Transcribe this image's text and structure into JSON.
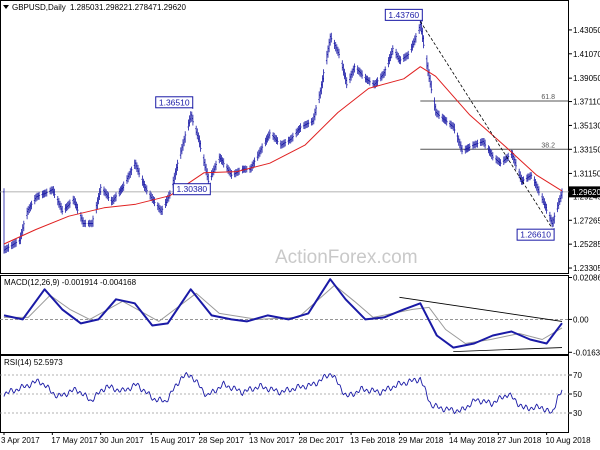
{
  "chart_data": [
    {
      "type": "line",
      "panel": "price",
      "symbol": "GBPUSD",
      "timeframe": "Daily",
      "header_label": "GBPUSD,Daily",
      "ohlc": {
        "open": "1.28503",
        "high": "1.29822",
        "low": "1.27847",
        "close": "1.29620"
      },
      "watermark": "ActionForex.com",
      "x_labels": [
        "3 Apr 2017",
        "17 May 2017",
        "30 Jun 2017",
        "15 Aug 2017",
        "28 Sep 2017",
        "13 Nov 2017",
        "28 Dec 2017",
        "13 Feb 2018",
        "29 Mar 2018",
        "14 May 2018",
        "27 Jun 2018",
        "10 Aug 2018"
      ],
      "x_range": [
        "2017-04-03",
        "2018-08-24"
      ],
      "y_ticks": [
        "1.43050",
        "1.41070",
        "1.39050",
        "1.37110",
        "1.35130",
        "1.33150",
        "1.31150",
        "1.29245",
        "1.27265",
        "1.25285",
        "1.23305"
      ],
      "ylim": [
        1.2281,
        1.4437
      ],
      "current_price": "1.29620",
      "annotations": [
        {
          "text": "1.43760",
          "date": "2018-04-17",
          "value": 1.4376,
          "role": "high"
        },
        {
          "text": "1.36510",
          "date": "2017-09-20",
          "value": 1.3651,
          "role": "high"
        },
        {
          "text": "1.30380",
          "date": "2017-10-06",
          "value": 1.3038,
          "role": "low"
        },
        {
          "text": "1.26610",
          "date": "2018-08-15",
          "value": 1.2661,
          "role": "low"
        }
      ],
      "fib_levels": [
        {
          "label": "61.8",
          "value": 1.3716
        },
        {
          "label": "38.2",
          "value": 1.3315
        }
      ],
      "series": [
        {
          "kind": "price",
          "color": "#1a1aa6",
          "points": [
            [
              "2017-04-03",
              1.248
            ],
            [
              "2017-04-17",
              1.256
            ],
            [
              "2017-04-24",
              1.28
            ],
            [
              "2017-05-02",
              1.292
            ],
            [
              "2017-05-10",
              1.295
            ],
            [
              "2017-05-17",
              1.298
            ],
            [
              "2017-05-26",
              1.28
            ],
            [
              "2017-06-05",
              1.29
            ],
            [
              "2017-06-14",
              1.27
            ],
            [
              "2017-06-22",
              1.27
            ],
            [
              "2017-06-30",
              1.3
            ],
            [
              "2017-07-10",
              1.288
            ],
            [
              "2017-07-20",
              1.3
            ],
            [
              "2017-07-31",
              1.32
            ],
            [
              "2017-08-09",
              1.3
            ],
            [
              "2017-08-16",
              1.29
            ],
            [
              "2017-08-24",
              1.28
            ],
            [
              "2017-09-01",
              1.295
            ],
            [
              "2017-09-08",
              1.32
            ],
            [
              "2017-09-14",
              1.34
            ],
            [
              "2017-09-20",
              1.36
            ],
            [
              "2017-09-27",
              1.34
            ],
            [
              "2017-10-06",
              1.305
            ],
            [
              "2017-10-16",
              1.325
            ],
            [
              "2017-10-27",
              1.31
            ],
            [
              "2017-11-06",
              1.315
            ],
            [
              "2017-11-13",
              1.315
            ],
            [
              "2017-11-22",
              1.33
            ],
            [
              "2017-12-01",
              1.345
            ],
            [
              "2017-12-11",
              1.335
            ],
            [
              "2017-12-20",
              1.34
            ],
            [
              "2017-12-29",
              1.35
            ],
            [
              "2018-01-09",
              1.355
            ],
            [
              "2018-01-16",
              1.38
            ],
            [
              "2018-01-25",
              1.425
            ],
            [
              "2018-02-02",
              1.41
            ],
            [
              "2018-02-09",
              1.385
            ],
            [
              "2018-02-16",
              1.4
            ],
            [
              "2018-02-26",
              1.39
            ],
            [
              "2018-03-06",
              1.385
            ],
            [
              "2018-03-15",
              1.395
            ],
            [
              "2018-03-23",
              1.415
            ],
            [
              "2018-03-29",
              1.405
            ],
            [
              "2018-04-06",
              1.41
            ],
            [
              "2018-04-13",
              1.425
            ],
            [
              "2018-04-17",
              1.435
            ],
            [
              "2018-04-24",
              1.395
            ],
            [
              "2018-05-01",
              1.362
            ],
            [
              "2018-05-10",
              1.355
            ],
            [
              "2018-05-17",
              1.35
            ],
            [
              "2018-05-25",
              1.33
            ],
            [
              "2018-06-04",
              1.335
            ],
            [
              "2018-06-13",
              1.338
            ],
            [
              "2018-06-22",
              1.325
            ],
            [
              "2018-06-29",
              1.32
            ],
            [
              "2018-07-09",
              1.328
            ],
            [
              "2018-07-18",
              1.305
            ],
            [
              "2018-07-27",
              1.31
            ],
            [
              "2018-08-06",
              1.29
            ],
            [
              "2018-08-15",
              1.27
            ],
            [
              "2018-08-21",
              1.288
            ],
            [
              "2018-08-24",
              1.2962
            ]
          ]
        },
        {
          "kind": "moving-average",
          "color": "#e02020",
          "points": [
            [
              "2017-04-03",
              1.253
            ],
            [
              "2017-05-02",
              1.265
            ],
            [
              "2017-06-01",
              1.276
            ],
            [
              "2017-07-03",
              1.283
            ],
            [
              "2017-08-01",
              1.286
            ],
            [
              "2017-09-01",
              1.293
            ],
            [
              "2017-10-02",
              1.312
            ],
            [
              "2017-11-01",
              1.313
            ],
            [
              "2017-12-01",
              1.32
            ],
            [
              "2018-01-02",
              1.335
            ],
            [
              "2018-02-01",
              1.362
            ],
            [
              "2018-03-01",
              1.382
            ],
            [
              "2018-04-02",
              1.39
            ],
            [
              "2018-04-17",
              1.4
            ],
            [
              "2018-05-01",
              1.392
            ],
            [
              "2018-06-01",
              1.36
            ],
            [
              "2018-07-02",
              1.335
            ],
            [
              "2018-08-01",
              1.31
            ],
            [
              "2018-08-24",
              1.297
            ]
          ]
        }
      ]
    },
    {
      "type": "line",
      "panel": "macd",
      "header_label": "MACD(12,26,9) -0.001914 -0.004168",
      "y_ticks": [
        "0.020861",
        "0.00",
        "-0.016357"
      ],
      "ylim": [
        -0.0172,
        0.0216
      ],
      "series": [
        {
          "kind": "macd",
          "color": "#1a1aa6",
          "points": [
            [
              "2017-04-03",
              0.002
            ],
            [
              "2017-04-20",
              0.0
            ],
            [
              "2017-05-10",
              0.015
            ],
            [
              "2017-05-26",
              0.005
            ],
            [
              "2017-06-12",
              -0.002
            ],
            [
              "2017-06-28",
              0.0
            ],
            [
              "2017-07-14",
              0.01
            ],
            [
              "2017-07-31",
              0.008
            ],
            [
              "2017-08-16",
              -0.003
            ],
            [
              "2017-08-30",
              -0.002
            ],
            [
              "2017-09-20",
              0.015
            ],
            [
              "2017-10-09",
              0.002
            ],
            [
              "2017-10-27",
              0.0
            ],
            [
              "2017-11-10",
              -0.001
            ],
            [
              "2017-11-29",
              0.002
            ],
            [
              "2017-12-18",
              0.0
            ],
            [
              "2018-01-05",
              0.003
            ],
            [
              "2018-01-25",
              0.02
            ],
            [
              "2018-02-08",
              0.01
            ],
            [
              "2018-02-26",
              0.0
            ],
            [
              "2018-03-15",
              0.001
            ],
            [
              "2018-04-02",
              0.005
            ],
            [
              "2018-04-17",
              0.008
            ],
            [
              "2018-05-02",
              -0.008
            ],
            [
              "2018-05-17",
              -0.014
            ],
            [
              "2018-06-05",
              -0.012
            ],
            [
              "2018-06-22",
              -0.008
            ],
            [
              "2018-07-09",
              -0.006
            ],
            [
              "2018-07-26",
              -0.01
            ],
            [
              "2018-08-10",
              -0.012
            ],
            [
              "2018-08-24",
              -0.0019
            ]
          ]
        },
        {
          "kind": "signal",
          "color": "#9a9a9a",
          "points": [
            [
              "2017-04-03",
              0.001
            ],
            [
              "2017-04-25",
              0.001
            ],
            [
              "2017-05-15",
              0.012
            ],
            [
              "2017-06-02",
              0.005
            ],
            [
              "2017-06-20",
              0.0
            ],
            [
              "2017-07-20",
              0.009
            ],
            [
              "2017-08-22",
              -0.001
            ],
            [
              "2017-09-25",
              0.013
            ],
            [
              "2017-10-16",
              0.003
            ],
            [
              "2017-11-20",
              0.0
            ],
            [
              "2017-12-27",
              0.001
            ],
            [
              "2018-01-29",
              0.017
            ],
            [
              "2018-02-16",
              0.009
            ],
            [
              "2018-03-05",
              0.001
            ],
            [
              "2018-04-10",
              0.005
            ],
            [
              "2018-04-25",
              0.006
            ],
            [
              "2018-05-10",
              -0.005
            ],
            [
              "2018-05-28",
              -0.012
            ],
            [
              "2018-06-20",
              -0.01
            ],
            [
              "2018-07-16",
              -0.007
            ],
            [
              "2018-08-06",
              -0.01
            ],
            [
              "2018-08-24",
              -0.0042
            ]
          ]
        }
      ],
      "zero_line": 0.0,
      "trendlines": [
        {
          "from": [
            "2018-03-29",
            0.011
          ],
          "to": [
            "2018-08-24",
            -0.001
          ]
        },
        {
          "from": [
            "2018-05-17",
            -0.016
          ],
          "to": [
            "2018-08-24",
            -0.014
          ]
        }
      ]
    },
    {
      "type": "line",
      "panel": "rsi",
      "header_label": "RSI(14) 52.5973",
      "y_ticks": [
        "70",
        "50",
        "30"
      ],
      "ylim": [
        10,
        90
      ],
      "series": [
        {
          "kind": "rsi",
          "color": "#1a1aa6",
          "points": [
            [
              "2017-04-03",
              50
            ],
            [
              "2017-04-20",
              57
            ],
            [
              "2017-05-05",
              64
            ],
            [
              "2017-05-22",
              47
            ],
            [
              "2017-06-08",
              55
            ],
            [
              "2017-06-21",
              43
            ],
            [
              "2017-07-05",
              58
            ],
            [
              "2017-07-20",
              53
            ],
            [
              "2017-08-02",
              60
            ],
            [
              "2017-08-17",
              45
            ],
            [
              "2017-08-28",
              42
            ],
            [
              "2017-09-12",
              68
            ],
            [
              "2017-09-20",
              70
            ],
            [
              "2017-10-05",
              48
            ],
            [
              "2017-10-20",
              60
            ],
            [
              "2017-11-06",
              52
            ],
            [
              "2017-11-22",
              58
            ],
            [
              "2017-12-11",
              52
            ],
            [
              "2017-12-27",
              57
            ],
            [
              "2018-01-10",
              60
            ],
            [
              "2018-01-26",
              72
            ],
            [
              "2018-02-09",
              47
            ],
            [
              "2018-02-23",
              55
            ],
            [
              "2018-03-12",
              52
            ],
            [
              "2018-03-28",
              60
            ],
            [
              "2018-04-17",
              66
            ],
            [
              "2018-04-27",
              38
            ],
            [
              "2018-05-10",
              34
            ],
            [
              "2018-05-24",
              32
            ],
            [
              "2018-06-07",
              44
            ],
            [
              "2018-06-21",
              40
            ],
            [
              "2018-07-06",
              50
            ],
            [
              "2018-07-20",
              35
            ],
            [
              "2018-08-06",
              36
            ],
            [
              "2018-08-15",
              29
            ],
            [
              "2018-08-20",
              47
            ],
            [
              "2018-08-24",
              52.5973
            ]
          ]
        }
      ],
      "levels": [
        70,
        50,
        30
      ]
    }
  ]
}
